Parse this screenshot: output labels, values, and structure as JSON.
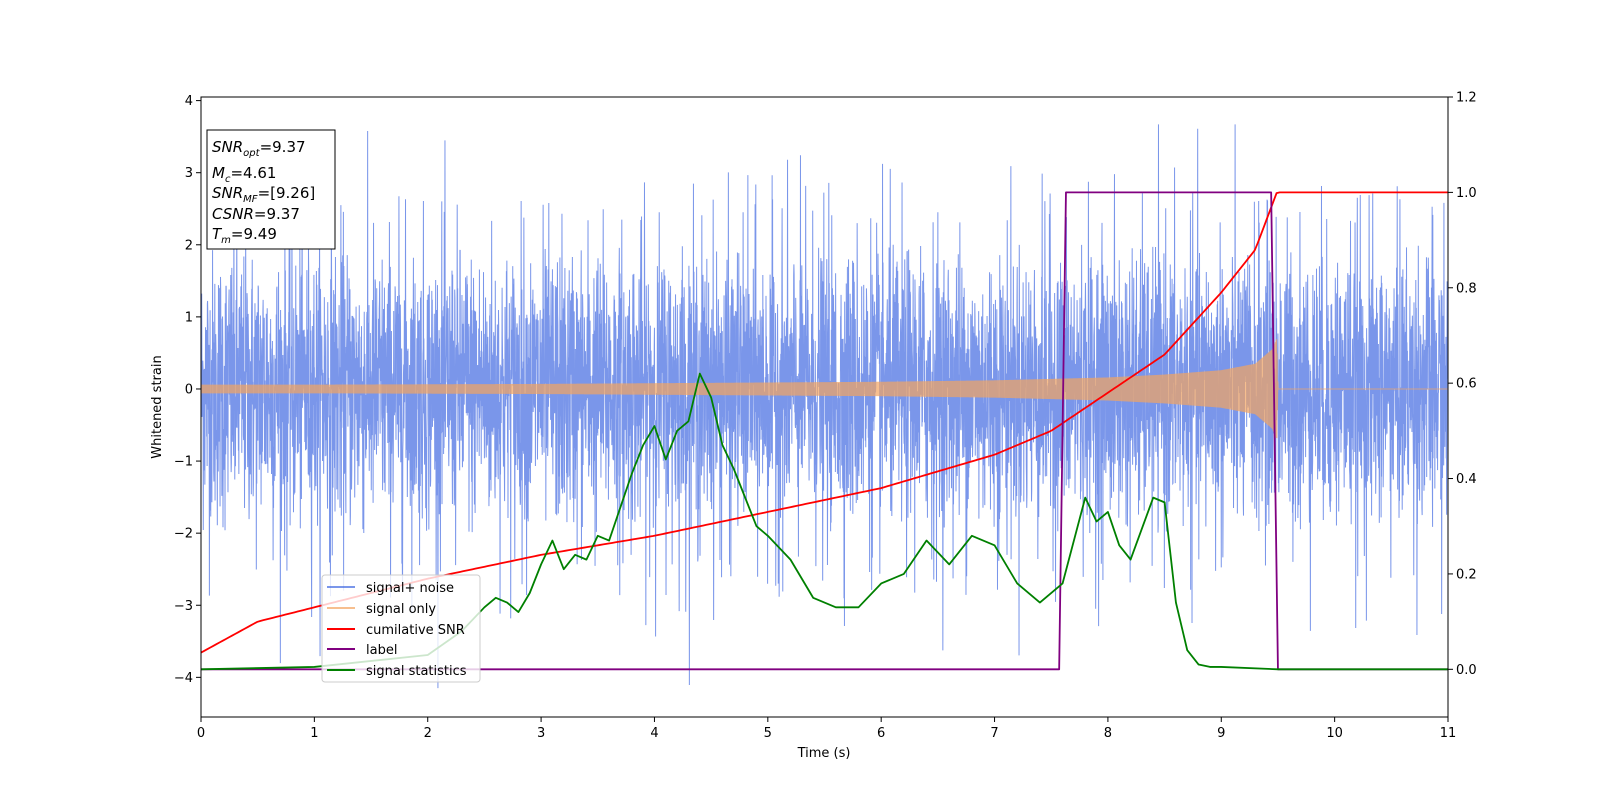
{
  "chart_data": {
    "type": "line",
    "xlabel": "Time (s)",
    "ylabel": "Whitened strain",
    "xlim": [
      0,
      11
    ],
    "ylim_left": [
      -4.55,
      4.05
    ],
    "ylim_right": [
      -0.1,
      1.2
    ],
    "x_ticks": [
      "0",
      "1",
      "2",
      "3",
      "4",
      "5",
      "6",
      "7",
      "8",
      "9",
      "10",
      "11"
    ],
    "y_ticks_left": [
      "−4",
      "−3",
      "−2",
      "−1",
      "0",
      "1",
      "2",
      "3",
      "4"
    ],
    "y_ticks_right": [
      "0.0",
      "0.2",
      "0.4",
      "0.6",
      "0.8",
      "1.0",
      "1.2"
    ],
    "grid": false,
    "legend_position": "lower-left",
    "info_box": {
      "snr_opt": {
        "symbol": "SNR",
        "sub": "opt",
        "value": "=9.37"
      },
      "mc": {
        "symbol": "M",
        "sub": "c",
        "value": "=4.61"
      },
      "snr_mf": {
        "symbol": "SNR",
        "sub": "MF",
        "value": "=[9.26]"
      },
      "csnr": {
        "symbol": "CSNR",
        "sub": "",
        "value": "=9.37"
      },
      "tm": {
        "symbol": "T",
        "sub": "m",
        "value": "=9.49"
      }
    },
    "series": [
      {
        "name": "signal+ noise",
        "axis": "left",
        "color": "#4169e1",
        "description_values": {
          "noise_std": 1.0,
          "extremes": [
            -4.15,
            3.67
          ]
        }
      },
      {
        "name": "signal only",
        "axis": "left",
        "color": "#f4a460",
        "envelope": {
          "x": [
            0,
            1,
            2,
            3,
            4,
            5,
            6,
            7,
            8,
            8.5,
            9,
            9.3,
            9.45,
            9.49,
            9.5,
            11
          ],
          "amplitude": [
            0.06,
            0.06,
            0.065,
            0.07,
            0.08,
            0.09,
            0.1,
            0.12,
            0.16,
            0.2,
            0.26,
            0.35,
            0.55,
            0.7,
            0.0,
            0.0
          ]
        }
      },
      {
        "name": "cumilative SNR",
        "axis": "right",
        "color": "#ff0000",
        "x": [
          0,
          0.5,
          1,
          2,
          3,
          4,
          5,
          6,
          7,
          7.5,
          8,
          8.5,
          9,
          9.3,
          9.49,
          9.5,
          11
        ],
        "y": [
          0.035,
          0.1,
          0.13,
          0.19,
          0.24,
          0.28,
          0.33,
          0.38,
          0.45,
          0.5,
          0.58,
          0.66,
          0.79,
          0.88,
          1.0,
          1.0,
          1.0
        ]
      },
      {
        "name": "label",
        "axis": "right",
        "color": "#800080",
        "x": [
          0,
          7.57,
          7.63,
          9.44,
          9.5,
          11
        ],
        "y": [
          0.0,
          0.0,
          1.0,
          1.0,
          0.0,
          0.0
        ]
      },
      {
        "name": "signal statistics",
        "axis": "right",
        "color": "#008000",
        "x": [
          0,
          1,
          2,
          2.3,
          2.5,
          2.6,
          2.7,
          2.8,
          2.9,
          3.0,
          3.1,
          3.2,
          3.3,
          3.4,
          3.5,
          3.6,
          3.7,
          3.8,
          3.9,
          4.0,
          4.1,
          4.2,
          4.3,
          4.4,
          4.5,
          4.6,
          4.7,
          4.8,
          4.9,
          5.0,
          5.2,
          5.4,
          5.6,
          5.8,
          6.0,
          6.2,
          6.4,
          6.6,
          6.8,
          7.0,
          7.2,
          7.4,
          7.6,
          7.8,
          7.9,
          8.0,
          8.1,
          8.2,
          8.4,
          8.5,
          8.6,
          8.7,
          8.8,
          8.9,
          9.0,
          9.5,
          11
        ],
        "y": [
          0.0,
          0.005,
          0.03,
          0.08,
          0.13,
          0.15,
          0.14,
          0.12,
          0.16,
          0.22,
          0.27,
          0.21,
          0.24,
          0.23,
          0.28,
          0.27,
          0.34,
          0.41,
          0.47,
          0.51,
          0.44,
          0.5,
          0.52,
          0.62,
          0.57,
          0.47,
          0.42,
          0.36,
          0.3,
          0.28,
          0.23,
          0.15,
          0.13,
          0.13,
          0.18,
          0.2,
          0.27,
          0.22,
          0.28,
          0.26,
          0.18,
          0.14,
          0.18,
          0.36,
          0.31,
          0.33,
          0.26,
          0.23,
          0.36,
          0.35,
          0.14,
          0.04,
          0.01,
          0.005,
          0.005,
          0.0,
          0.0
        ]
      }
    ]
  }
}
